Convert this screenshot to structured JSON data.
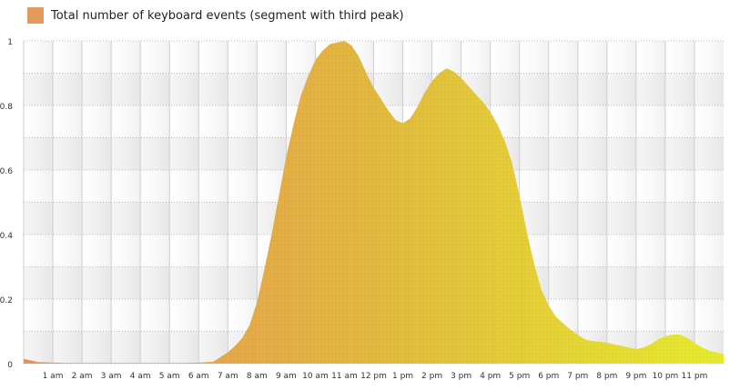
{
  "chart_data": {
    "type": "area",
    "legend": {
      "label": "Total number of keyboard events (segment with third peak)",
      "position": "top-left"
    },
    "colors": {
      "series_start": "#E8935A",
      "series_mid": "#E2B93F",
      "series_end": "#E6EB2E",
      "legend_swatch": "#E39A5B",
      "band_dark": "#E8E8E8",
      "band_light": "#FFFFFF",
      "hgrid": "#BBBBBB",
      "vgrid": "#CFCFCF",
      "axis_text": "#333333"
    },
    "ylim": [
      0,
      1
    ],
    "y_ticks": [
      {
        "value": 0,
        "label": "0"
      },
      {
        "value": 0.2,
        "label": "0.2"
      },
      {
        "value": 0.4,
        "label": "0.4"
      },
      {
        "value": 0.6,
        "label": "0.6"
      },
      {
        "value": 0.8,
        "label": "0.8"
      },
      {
        "value": 1,
        "label": "1"
      }
    ],
    "xlim": [
      0,
      24
    ],
    "x_ticks": [
      {
        "value": 1,
        "label": "1 am"
      },
      {
        "value": 2,
        "label": "2 am"
      },
      {
        "value": 3,
        "label": "3 am"
      },
      {
        "value": 4,
        "label": "4 am"
      },
      {
        "value": 5,
        "label": "5 am"
      },
      {
        "value": 6,
        "label": "6 am"
      },
      {
        "value": 7,
        "label": "7 am"
      },
      {
        "value": 8,
        "label": "8 am"
      },
      {
        "value": 9,
        "label": "9 am"
      },
      {
        "value": 10,
        "label": "10 am"
      },
      {
        "value": 11,
        "label": "11 am"
      },
      {
        "value": 12,
        "label": "12 pm"
      },
      {
        "value": 13,
        "label": "1 pm"
      },
      {
        "value": 14,
        "label": "2 pm"
      },
      {
        "value": 15,
        "label": "3 pm"
      },
      {
        "value": 16,
        "label": "4 pm"
      },
      {
        "value": 17,
        "label": "5 pm"
      },
      {
        "value": 18,
        "label": "6 pm"
      },
      {
        "value": 19,
        "label": "7 pm"
      },
      {
        "value": 20,
        "label": "8 pm"
      },
      {
        "value": 21,
        "label": "9 pm"
      },
      {
        "value": 22,
        "label": "10 pm"
      },
      {
        "value": 23,
        "label": "11 pm"
      }
    ],
    "x": [
      0,
      0.5,
      1,
      1.5,
      2,
      2.5,
      3,
      3.5,
      4,
      4.5,
      5,
      5.5,
      6,
      6.5,
      7,
      7.25,
      7.5,
      7.75,
      8,
      8.25,
      8.5,
      8.75,
      9,
      9.25,
      9.5,
      9.75,
      10,
      10.25,
      10.5,
      10.75,
      11,
      11.25,
      11.5,
      11.75,
      12,
      12.25,
      12.5,
      12.75,
      13,
      13.25,
      13.5,
      13.75,
      14,
      14.25,
      14.5,
      14.75,
      15,
      15.25,
      15.5,
      15.75,
      16,
      16.25,
      16.5,
      16.75,
      17,
      17.25,
      17.5,
      17.75,
      18,
      18.25,
      18.5,
      18.75,
      19,
      19.25,
      19.5,
      19.75,
      20,
      20.25,
      20.5,
      20.75,
      21,
      21.25,
      21.5,
      21.75,
      22,
      22.25,
      22.5,
      22.75,
      23,
      23.25,
      23.5,
      23.75,
      24
    ],
    "y": [
      0.015,
      0.005,
      0.003,
      0.002,
      0.002,
      0.002,
      0.002,
      0.002,
      0.002,
      0.002,
      0.002,
      0.002,
      0.003,
      0.006,
      0.035,
      0.055,
      0.08,
      0.12,
      0.19,
      0.29,
      0.4,
      0.52,
      0.64,
      0.74,
      0.83,
      0.89,
      0.94,
      0.97,
      0.99,
      0.995,
      1.0,
      0.985,
      0.95,
      0.9,
      0.855,
      0.82,
      0.785,
      0.755,
      0.745,
      0.76,
      0.795,
      0.84,
      0.875,
      0.9,
      0.915,
      0.905,
      0.885,
      0.86,
      0.835,
      0.81,
      0.78,
      0.74,
      0.69,
      0.62,
      0.52,
      0.41,
      0.31,
      0.23,
      0.18,
      0.145,
      0.125,
      0.105,
      0.09,
      0.075,
      0.07,
      0.068,
      0.065,
      0.06,
      0.055,
      0.05,
      0.045,
      0.05,
      0.06,
      0.075,
      0.085,
      0.09,
      0.09,
      0.08,
      0.065,
      0.05,
      0.04,
      0.035,
      0.03
    ]
  }
}
